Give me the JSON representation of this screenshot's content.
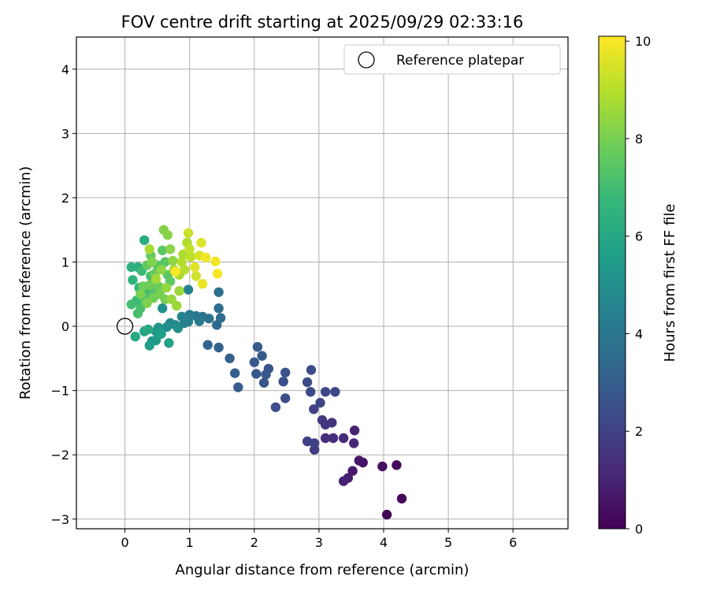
{
  "chart_data": {
    "type": "scatter",
    "title": "FOV centre drift starting at 2025/09/29 02:33:16",
    "xlabel": "Angular distance from reference (arcmin)",
    "ylabel": "Rotation from reference (arcmin)",
    "xlim": [
      -0.75,
      6.85
    ],
    "ylim": [
      -3.15,
      4.5
    ],
    "xticks": [
      0,
      1,
      2,
      3,
      4,
      5,
      6
    ],
    "yticks": [
      -3,
      -2,
      -1,
      0,
      1,
      2,
      3,
      4
    ],
    "grid": true,
    "legend": {
      "placement": "top-right",
      "entries": [
        "Reference platepar"
      ]
    },
    "reference_point": {
      "x": 0,
      "y": 0
    },
    "colorbar": {
      "label": "Hours from first FF file",
      "range": [
        0,
        10.1
      ],
      "ticks": [
        0,
        2,
        4,
        6,
        8,
        10
      ],
      "colormap": "viridis",
      "stops": [
        "#440154",
        "#482878",
        "#3e4989",
        "#31688e",
        "#26828e",
        "#1f9e89",
        "#35b779",
        "#6ece58",
        "#b5de2b",
        "#fde725"
      ]
    },
    "series": [
      {
        "name": "FOV centre",
        "points": [
          [
            4.05,
            -2.93,
            0.1
          ],
          [
            4.28,
            -2.68,
            0.2
          ],
          [
            4.2,
            -2.16,
            0.3
          ],
          [
            3.98,
            -2.18,
            0.4
          ],
          [
            3.68,
            -2.12,
            0.5
          ],
          [
            3.62,
            -2.09,
            0.6
          ],
          [
            3.52,
            -2.25,
            0.7
          ],
          [
            3.45,
            -2.36,
            0.8
          ],
          [
            3.38,
            -2.41,
            0.9
          ],
          [
            3.55,
            -1.62,
            1.0
          ],
          [
            3.54,
            -1.82,
            1.1
          ],
          [
            3.38,
            -1.74,
            1.2
          ],
          [
            3.22,
            -1.74,
            1.3
          ],
          [
            3.1,
            -1.74,
            1.4
          ],
          [
            3.2,
            -1.5,
            1.5
          ],
          [
            3.1,
            -1.53,
            1.6
          ],
          [
            3.05,
            -1.46,
            1.7
          ],
          [
            2.93,
            -1.92,
            1.8
          ],
          [
            2.82,
            -1.79,
            1.9
          ],
          [
            2.93,
            -1.82,
            1.95
          ],
          [
            2.92,
            -1.29,
            2.0
          ],
          [
            3.02,
            -1.19,
            2.1
          ],
          [
            3.1,
            -1.02,
            2.15
          ],
          [
            3.25,
            -1.02,
            2.2
          ],
          [
            2.87,
            -1.02,
            2.25
          ],
          [
            2.82,
            -0.87,
            2.3
          ],
          [
            2.88,
            -0.68,
            2.35
          ],
          [
            2.48,
            -1.12,
            2.4
          ],
          [
            2.33,
            -1.26,
            2.45
          ],
          [
            2.45,
            -0.86,
            2.5
          ],
          [
            2.48,
            -0.72,
            2.55
          ],
          [
            2.22,
            -0.66,
            2.6
          ],
          [
            2.15,
            -0.88,
            2.65
          ],
          [
            2.18,
            -0.75,
            2.7
          ],
          [
            2.03,
            -0.74,
            2.75
          ],
          [
            2.0,
            -0.56,
            2.8
          ],
          [
            2.12,
            -0.46,
            2.85
          ],
          [
            2.05,
            -0.32,
            2.9
          ],
          [
            1.75,
            -0.95,
            2.95
          ],
          [
            1.7,
            -0.73,
            3.0
          ],
          [
            1.62,
            -0.5,
            3.1
          ],
          [
            1.45,
            -0.33,
            3.2
          ],
          [
            1.28,
            -0.29,
            3.3
          ],
          [
            1.42,
            0.02,
            3.4
          ],
          [
            1.48,
            0.13,
            3.5
          ],
          [
            1.45,
            0.28,
            3.6
          ],
          [
            1.45,
            0.53,
            3.7
          ],
          [
            1.3,
            0.12,
            3.8
          ],
          [
            1.2,
            0.15,
            3.9
          ],
          [
            1.1,
            0.16,
            4.0
          ],
          [
            1.15,
            0.08,
            4.1
          ],
          [
            1.0,
            0.18,
            4.2
          ],
          [
            0.98,
            0.07,
            4.3
          ],
          [
            0.92,
            0.05,
            4.4
          ],
          [
            0.98,
            0.57,
            4.5
          ],
          [
            0.88,
            0.15,
            4.6
          ],
          [
            0.78,
            0.02,
            4.7
          ],
          [
            0.7,
            0.05,
            4.8
          ],
          [
            0.65,
            -0.01,
            4.9
          ],
          [
            0.82,
            -0.03,
            5.0
          ],
          [
            0.58,
            0.28,
            5.1
          ],
          [
            0.52,
            -0.02,
            5.2
          ],
          [
            0.48,
            -0.08,
            5.3
          ],
          [
            0.42,
            -0.23,
            5.4
          ],
          [
            0.48,
            -0.22,
            5.5
          ],
          [
            0.38,
            -0.3,
            5.6
          ],
          [
            0.56,
            -0.12,
            5.7
          ],
          [
            0.68,
            -0.26,
            5.8
          ],
          [
            0.3,
            -0.08,
            5.9
          ],
          [
            0.16,
            -0.16,
            6.0
          ],
          [
            0.36,
            -0.05,
            6.1
          ],
          [
            0.3,
            1.34,
            6.2
          ],
          [
            0.2,
            0.92,
            6.3
          ],
          [
            0.1,
            0.92,
            6.4
          ],
          [
            0.12,
            0.72,
            6.5
          ],
          [
            0.22,
            0.6,
            6.6
          ],
          [
            0.32,
            0.52,
            6.7
          ],
          [
            0.18,
            0.4,
            6.8
          ],
          [
            0.26,
            0.86,
            6.9
          ],
          [
            0.4,
            0.78,
            7.0
          ],
          [
            0.1,
            0.34,
            7.05
          ],
          [
            0.2,
            0.2,
            7.1
          ],
          [
            0.24,
            0.28,
            7.15
          ],
          [
            0.3,
            0.4,
            7.2
          ],
          [
            0.36,
            0.45,
            7.25
          ],
          [
            0.45,
            0.55,
            7.3
          ],
          [
            0.5,
            0.95,
            7.35
          ],
          [
            0.62,
            1.0,
            7.4
          ],
          [
            0.58,
            1.18,
            7.45
          ],
          [
            0.66,
            0.8,
            7.5
          ],
          [
            0.7,
            0.7,
            7.55
          ],
          [
            0.34,
            0.95,
            7.6
          ],
          [
            0.4,
            1.1,
            7.65
          ],
          [
            0.46,
            0.82,
            7.7
          ],
          [
            0.52,
            0.62,
            7.75
          ],
          [
            0.28,
            0.62,
            7.8
          ],
          [
            0.38,
            0.64,
            7.85
          ],
          [
            0.44,
            0.44,
            7.9
          ],
          [
            0.54,
            0.5,
            7.95
          ],
          [
            0.62,
            0.42,
            8.0
          ],
          [
            0.24,
            0.5,
            8.05
          ],
          [
            0.34,
            0.36,
            8.1
          ],
          [
            0.42,
            1.0,
            8.15
          ],
          [
            0.6,
            1.5,
            8.2
          ],
          [
            0.66,
            1.42,
            8.25
          ],
          [
            0.7,
            1.2,
            8.3
          ],
          [
            0.74,
            1.02,
            8.35
          ],
          [
            0.56,
            0.88,
            8.4
          ],
          [
            0.64,
            0.6,
            8.45
          ],
          [
            0.72,
            0.42,
            8.5
          ],
          [
            0.8,
            0.32,
            8.55
          ],
          [
            0.84,
            0.55,
            8.6
          ],
          [
            0.76,
            0.88,
            8.65
          ],
          [
            0.48,
            0.74,
            8.7
          ],
          [
            0.38,
            1.2,
            8.75
          ],
          [
            0.84,
            0.8,
            8.8
          ],
          [
            0.9,
            1.12,
            8.85
          ],
          [
            0.96,
            1.3,
            8.9
          ],
          [
            0.88,
            1.0,
            8.95
          ],
          [
            0.92,
            0.88,
            9.0
          ],
          [
            1.02,
            1.08,
            9.1
          ],
          [
            1.0,
            1.2,
            9.2
          ],
          [
            0.98,
            1.45,
            9.3
          ],
          [
            1.1,
            0.78,
            9.4
          ],
          [
            1.15,
            1.1,
            9.5
          ],
          [
            1.18,
            1.3,
            9.6
          ],
          [
            1.08,
            0.92,
            9.7
          ],
          [
            1.2,
            0.66,
            9.8
          ],
          [
            1.25,
            1.07,
            9.9
          ],
          [
            1.4,
            1.01,
            9.95
          ],
          [
            1.43,
            0.82,
            10.0
          ],
          [
            0.78,
            0.85,
            10.05
          ]
        ]
      }
    ]
  }
}
